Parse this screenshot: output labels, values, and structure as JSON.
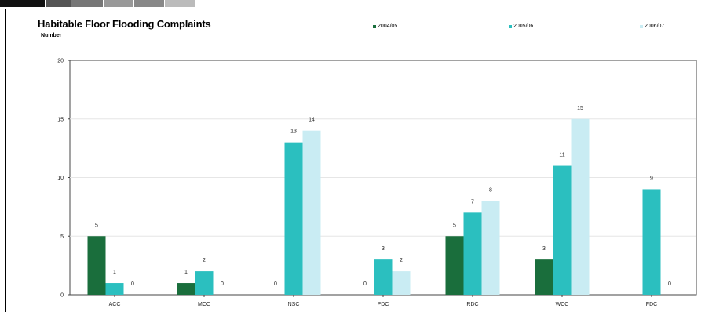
{
  "header": {
    "tab_colors": [
      "#111111",
      "#555555",
      "#777777",
      "#999999",
      "#888888",
      "#bbbbbb"
    ]
  },
  "chart_data": {
    "type": "bar",
    "title": "Habitable Floor Flooding Complaints",
    "ylabel": "Number",
    "xlabel": "",
    "categories": [
      "ACC",
      "MCC",
      "NSC",
      "PDC",
      "RDC",
      "WCC",
      "FDC"
    ],
    "series": [
      {
        "name": "2004/05",
        "color": "#1a6e3c",
        "values": [
          5,
          1,
          0,
          0,
          5,
          3,
          null
        ]
      },
      {
        "name": "2005/06",
        "color": "#2bbfbf",
        "values": [
          1,
          2,
          13,
          3,
          7,
          11,
          9
        ]
      },
      {
        "name": "2006/07",
        "color": "#c9ecf3",
        "values": [
          0,
          0,
          14,
          2,
          8,
          15,
          0
        ]
      }
    ],
    "ylim": [
      0,
      20
    ],
    "yticks": [
      0,
      5,
      10,
      15,
      20
    ],
    "grid": true,
    "legend": "top"
  }
}
